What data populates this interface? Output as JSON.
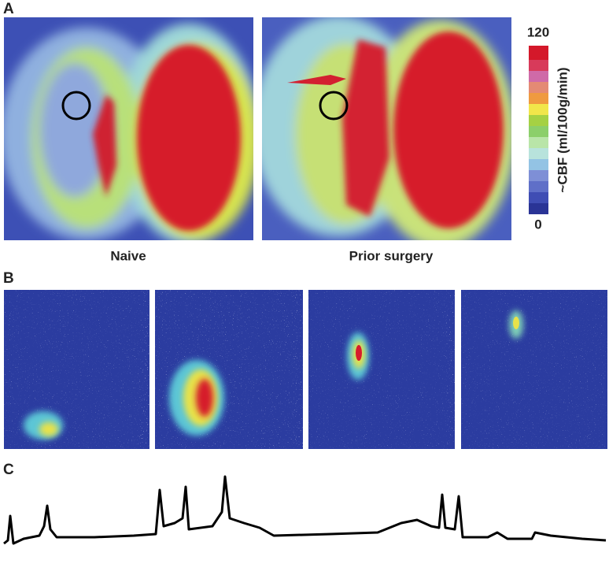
{
  "panels": [
    {
      "label": "A",
      "captions": [
        "Naive",
        "Prior surgery"
      ],
      "colorbar": {
        "max": 120,
        "min": 0,
        "title": "~CBF (ml/100g/min)"
      }
    },
    {
      "label": "B"
    },
    {
      "label": "C"
    }
  ]
}
